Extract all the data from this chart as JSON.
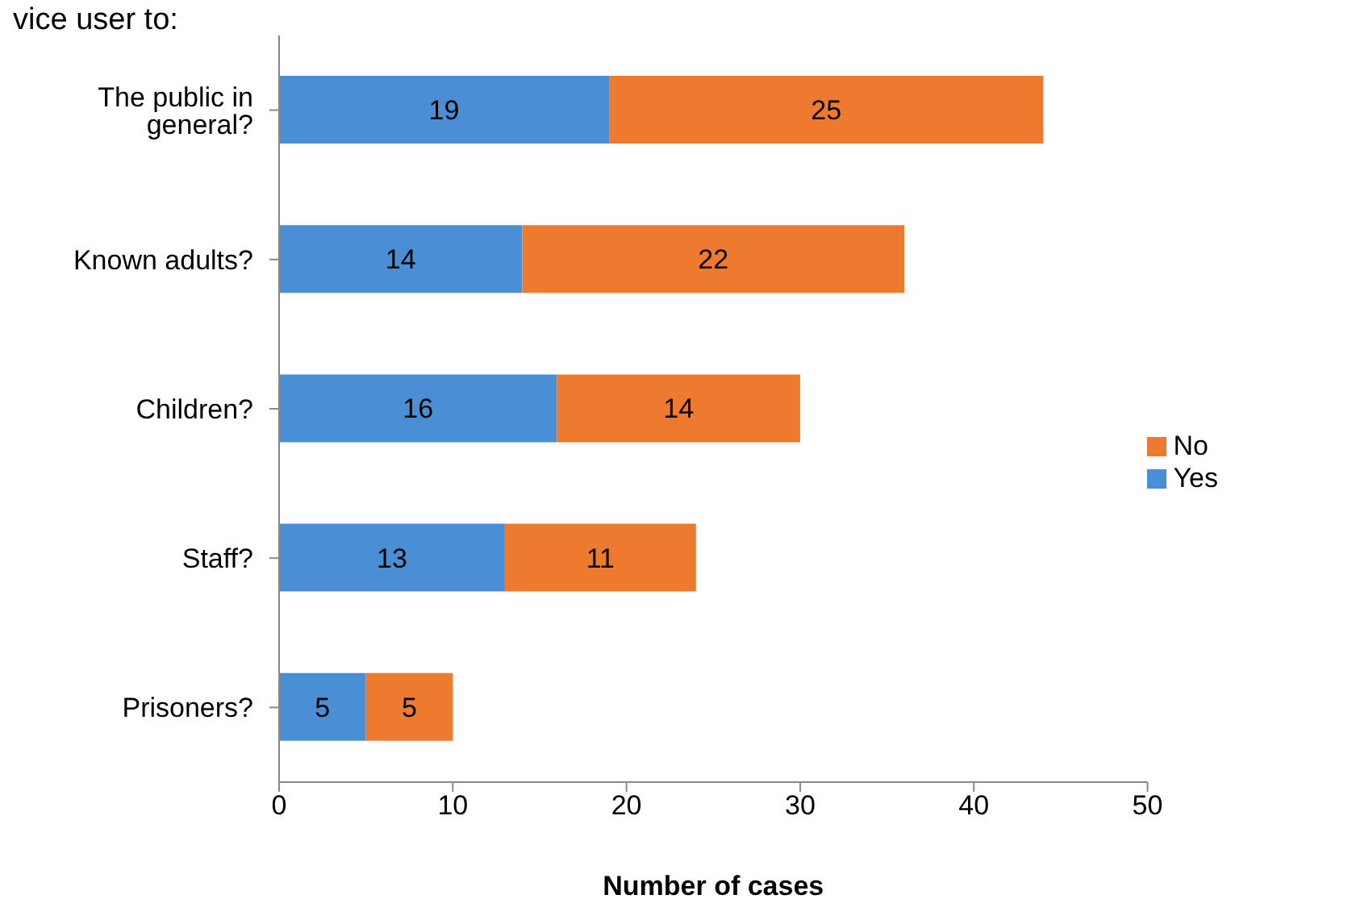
{
  "chart_data": {
    "type": "bar",
    "orientation": "horizontal",
    "stacked": true,
    "title": "vice user to:",
    "xlabel": "Number of cases",
    "categories": [
      "The public in general?",
      "Known adults?",
      "Children?",
      "Staff?",
      "Prisoners?"
    ],
    "series": [
      {
        "name": "Yes",
        "color": "#4a8fd6",
        "values": [
          19,
          14,
          16,
          13,
          5
        ]
      },
      {
        "name": "No",
        "color": "#ee7a30",
        "values": [
          25,
          22,
          14,
          11,
          5
        ]
      }
    ],
    "xlim": [
      0,
      50
    ],
    "xticks": [
      0,
      10,
      20,
      30,
      40,
      50
    ],
    "grid": false,
    "legend": "right",
    "data_labels": true
  }
}
